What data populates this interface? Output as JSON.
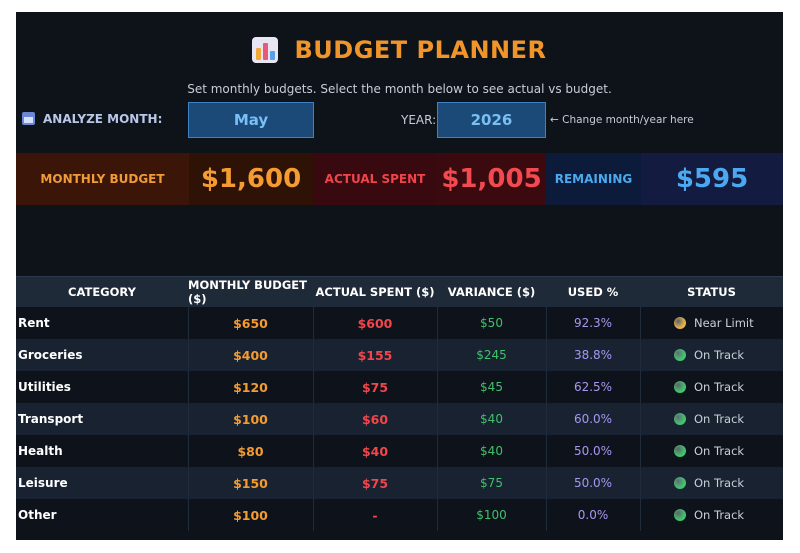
{
  "title": "BUDGET PLANNER",
  "subtitle": "Set monthly budgets. Select the month below to see actual vs budget.",
  "controls": {
    "analyze_label": "ANALYZE MONTH:",
    "month_value": "May",
    "year_label": "YEAR:",
    "year_value": "2026",
    "hint": "← Change month/year here"
  },
  "kpis": {
    "budget_label": "MONTHLY BUDGET",
    "budget_value": "$1,600",
    "actual_label": "ACTUAL SPENT",
    "actual_value": "$1,005",
    "remaining_label": "REMAINING",
    "remaining_value": "$595"
  },
  "table": {
    "headers": [
      "CATEGORY",
      "MONTHLY BUDGET ($)",
      "ACTUAL SPENT ($)",
      "VARIANCE ($)",
      "USED %",
      "STATUS"
    ],
    "rows": [
      {
        "category": "Rent",
        "budget": "$650",
        "actual": "$600",
        "variance": "$50",
        "used": "92.3%",
        "status": "Near Limit",
        "status_color": "#e8b24a"
      },
      {
        "category": "Groceries",
        "budget": "$400",
        "actual": "$155",
        "variance": "$245",
        "used": "38.8%",
        "status": "On Track",
        "status_color": "#3fc66e"
      },
      {
        "category": "Utilities",
        "budget": "$120",
        "actual": "$75",
        "variance": "$45",
        "used": "62.5%",
        "status": "On Track",
        "status_color": "#3fc66e"
      },
      {
        "category": "Transport",
        "budget": "$100",
        "actual": "$60",
        "variance": "$40",
        "used": "60.0%",
        "status": "On Track",
        "status_color": "#3fc66e"
      },
      {
        "category": "Health",
        "budget": "$80",
        "actual": "$40",
        "variance": "$40",
        "used": "50.0%",
        "status": "On Track",
        "status_color": "#3fc66e"
      },
      {
        "category": "Leisure",
        "budget": "$150",
        "actual": "$75",
        "variance": "$75",
        "used": "50.0%",
        "status": "On Track",
        "status_color": "#3fc66e"
      },
      {
        "category": "Other",
        "budget": "$100",
        "actual": "-",
        "variance": "$100",
        "used": "0.0%",
        "status": "On Track",
        "status_color": "#3fc66e"
      }
    ]
  },
  "colors": {
    "accent": "#f0952a",
    "budget": "#f49b32",
    "actual": "#f0464c",
    "variance": "#40c06a",
    "used": "#a796f2",
    "remaining": "#4aa9f0"
  }
}
